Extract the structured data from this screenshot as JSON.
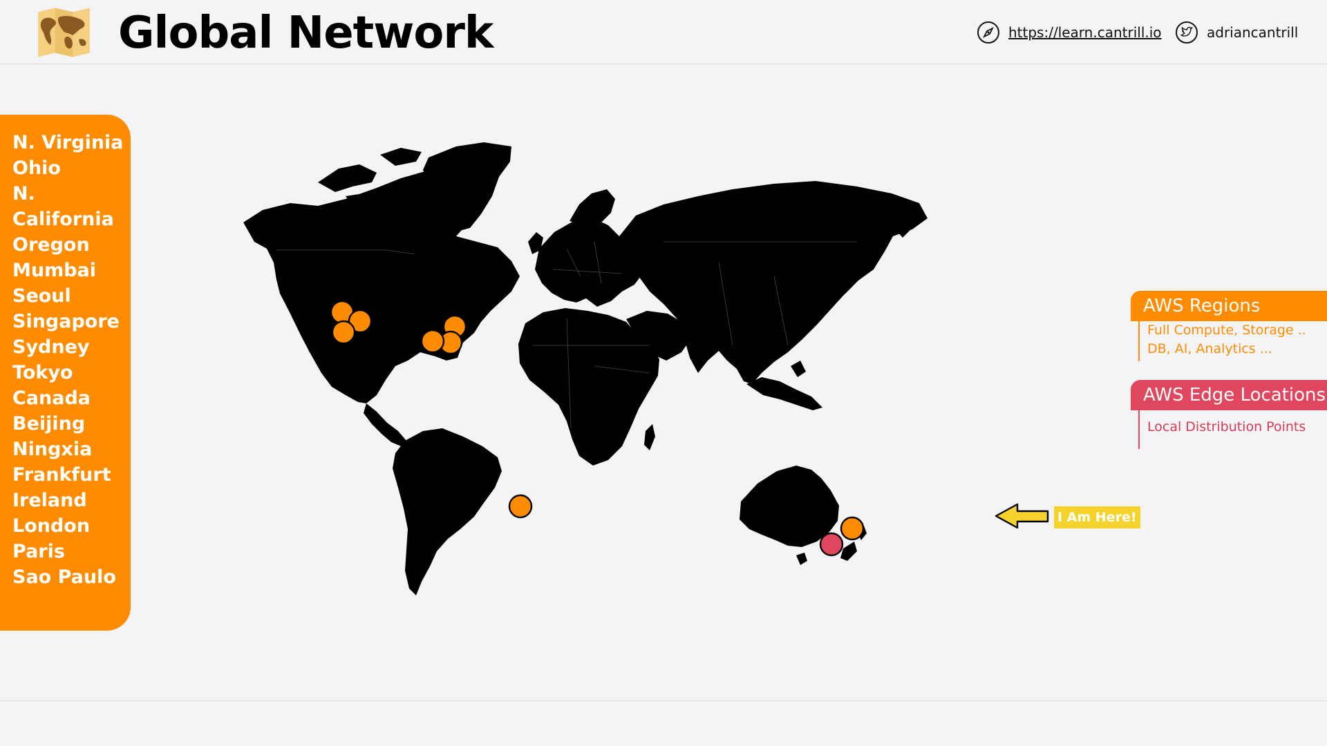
{
  "header": {
    "title": "Global Network",
    "website": "https://learn.cantrill.io",
    "twitter": "adriancantrill"
  },
  "regions": {
    "items": [
      "N. Virginia",
      "Ohio",
      "N.",
      "California",
      "Oregon",
      "Mumbai",
      "Seoul",
      "Singapore",
      "Sydney",
      "Tokyo",
      "Canada",
      "Beijing",
      "Ningxia",
      "Frankfurt",
      "Ireland",
      "London",
      "Paris",
      "Sao Paulo"
    ]
  },
  "legend": {
    "regions_title": "AWS Regions",
    "regions_desc_1": "Full Compute, Storage ..",
    "regions_desc_2": "DB, AI, Analytics ...",
    "edge_title": "AWS Edge Locations",
    "edge_desc": "Local Distribution Points"
  },
  "callout": {
    "here": "I Am Here!"
  },
  "colors": {
    "region": "#ff8c00",
    "edge": "#e0475e",
    "callout": "#f5d32a",
    "land": "#000000"
  },
  "icons": {
    "logo": "world-map-icon",
    "web": "compass-icon",
    "twitter": "twitter-bird-icon"
  }
}
